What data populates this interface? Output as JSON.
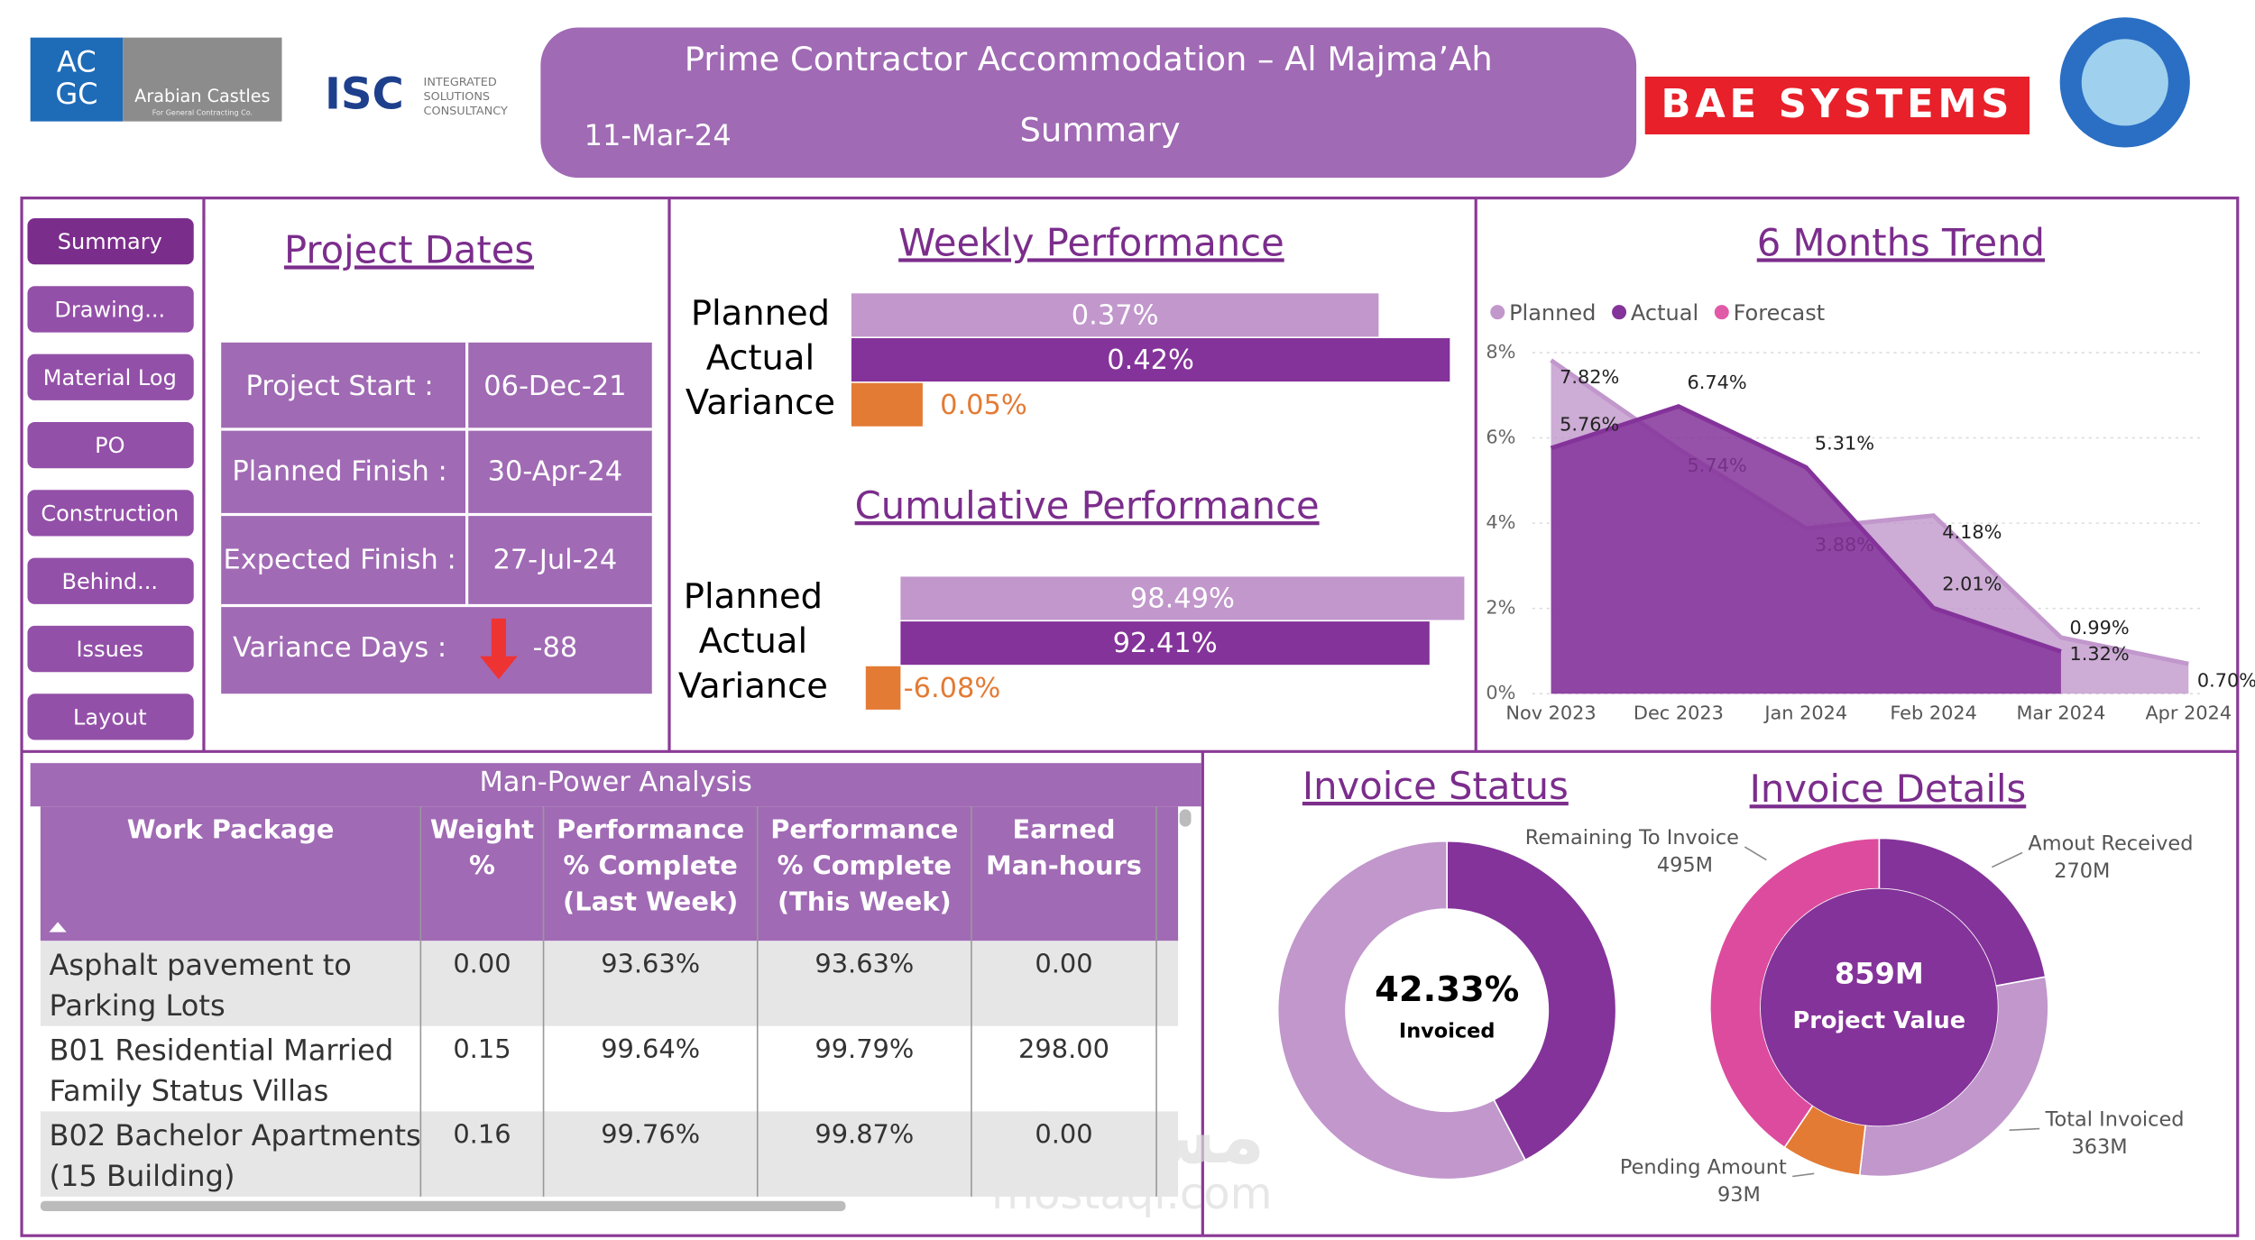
{
  "header": {
    "title": "Prime Contractor Accommodation – Al Majma’Ah",
    "date": "11-Mar-24",
    "page": "Summary"
  },
  "logos": {
    "acgc": [
      "AC",
      "GC"
    ],
    "arabian": "Arabian Castles",
    "arabian_sub": "For General Contracting Co.",
    "isc": "ISC",
    "isc_lines": [
      "INTEGRATED",
      "SOLUTIONS",
      "CONSULTANCY"
    ],
    "bae": "BAE SYSTEMS"
  },
  "nav": [
    "Summary",
    "Drawing...",
    "Material Log",
    "PO",
    "Construction",
    "Behind...",
    "Issues",
    "Layout"
  ],
  "project_dates": {
    "title": "Project Dates",
    "rows": [
      {
        "label": "Project Start :",
        "value": "06-Dec-21"
      },
      {
        "label": "Planned Finish :",
        "value": "30-Apr-24"
      },
      {
        "label": "Expected Finish :",
        "value": "27-Jul-24"
      }
    ],
    "variance": {
      "label": "Variance Days :",
      "value": -88
    }
  },
  "chart_data": [
    {
      "type": "hbar",
      "title": "Weekly Performance",
      "categories": [
        "Planned",
        "Actual",
        "Variance"
      ],
      "values": [
        0.37,
        0.42,
        0.05
      ],
      "value_labels": [
        "0.37%",
        "0.42%",
        "0.05%"
      ],
      "colors": [
        "#c197cc",
        "#84339a",
        "#e37b35"
      ]
    },
    {
      "type": "hbar",
      "title": "Cumulative Performance",
      "categories": [
        "Planned",
        "Actual",
        "Variance"
      ],
      "values": [
        98.49,
        92.41,
        -6.08
      ],
      "value_labels": [
        "98.49%",
        "92.41%",
        "-6.08%"
      ],
      "colors": [
        "#c197cc",
        "#84339a",
        "#e37b35"
      ]
    },
    {
      "type": "area",
      "title": "6 Months Trend",
      "categories": [
        "Nov 2023",
        "Dec 2023",
        "Jan 2024",
        "Feb 2024",
        "Mar 2024",
        "Apr 2024"
      ],
      "series": [
        {
          "name": "Planned",
          "color": "#c197cc",
          "values": [
            7.82,
            5.74,
            3.88,
            4.18,
            1.32,
            0.7
          ],
          "value_labels": [
            "7.82%",
            "5.74%",
            "3.88%",
            "4.18%",
            "1.32%",
            "0.70%"
          ]
        },
        {
          "name": "Actual",
          "color": "#84339a",
          "values": [
            5.76,
            6.74,
            5.31,
            2.01,
            0.99,
            null
          ],
          "value_labels": [
            "5.76%",
            "6.74%",
            "5.31%",
            "2.01%",
            "0.99%",
            null
          ]
        },
        {
          "name": "Forecast",
          "color": "#e05aa8",
          "values": [
            null,
            null,
            null,
            null,
            null,
            null
          ]
        }
      ],
      "ylim": [
        0,
        8
      ],
      "yticks": [
        {
          "value": 0,
          "label": "0%"
        },
        {
          "value": 2,
          "label": "2%"
        },
        {
          "value": 4,
          "label": "4%"
        },
        {
          "value": 6,
          "label": "6%"
        },
        {
          "value": 8,
          "label": "8%"
        }
      ],
      "grid": true,
      "legend": "top"
    },
    {
      "type": "donut",
      "title": "Invoice Status",
      "categories": [
        "Invoiced",
        null
      ],
      "values": [
        42.33,
        57.67
      ],
      "value_labels": [
        "42.33%",
        null
      ],
      "colors": [
        "#84339a",
        "#c197cc"
      ]
    },
    {
      "type": "donut",
      "title": "Invoice Details",
      "categories": [
        "Amout Received",
        "Total Invoiced",
        "Pending Amount",
        "Remaining To Invoice"
      ],
      "values": [
        270,
        363,
        93,
        495
      ],
      "value_labels": [
        "270M",
        "363M",
        "93M",
        "495M"
      ],
      "colors": [
        "#84339a",
        "#c197cc",
        "#e37b35",
        "#dd4b9e"
      ],
      "center": {
        "value": 859,
        "value_label": "859M",
        "label": "Project Value"
      }
    }
  ],
  "table": {
    "title": "Man-Power Analysis",
    "columns": [
      [
        "Work Package"
      ],
      [
        "Weight",
        "%"
      ],
      [
        "Performance",
        "% Complete",
        "(Last Week)"
      ],
      [
        "Performance",
        "% Complete",
        "(This Week)"
      ],
      [
        "Earned",
        "Man-hours"
      ]
    ],
    "rows": [
      [
        [
          "Asphalt pavement to",
          "Parking Lots"
        ],
        "0.00",
        "93.63%",
        "93.63%",
        "0.00"
      ],
      [
        [
          "B01 Residential Married",
          "Family Status Villas"
        ],
        "0.15",
        "99.64%",
        "99.79%",
        "298.00"
      ],
      [
        [
          "B02 Bachelor Apartments",
          "(15 Building)"
        ],
        "0.16",
        "99.76%",
        "99.87%",
        "0.00"
      ]
    ]
  },
  "watermark": [
    "مستقل",
    "mostaql.com"
  ]
}
